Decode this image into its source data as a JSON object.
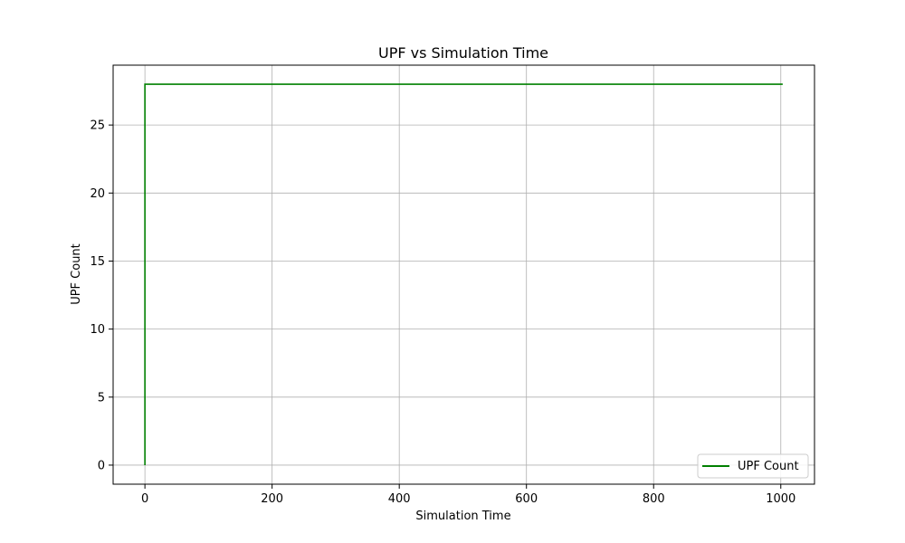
{
  "chart_data": {
    "type": "line",
    "title": "UPF vs Simulation Time",
    "xlabel": "Simulation Time",
    "ylabel": "UPF Count",
    "xlim": [
      -50,
      1053
    ],
    "ylim": [
      -1.4,
      29.4
    ],
    "x_ticks": [
      0,
      200,
      400,
      600,
      800,
      1000
    ],
    "y_ticks": [
      0,
      5,
      10,
      15,
      20,
      25
    ],
    "grid": true,
    "legend_position": "lower-right",
    "series": [
      {
        "name": "UPF Count",
        "color": "#008000",
        "x": [
          0,
          0,
          1003
        ],
        "y": [
          0,
          28,
          28
        ]
      }
    ]
  }
}
